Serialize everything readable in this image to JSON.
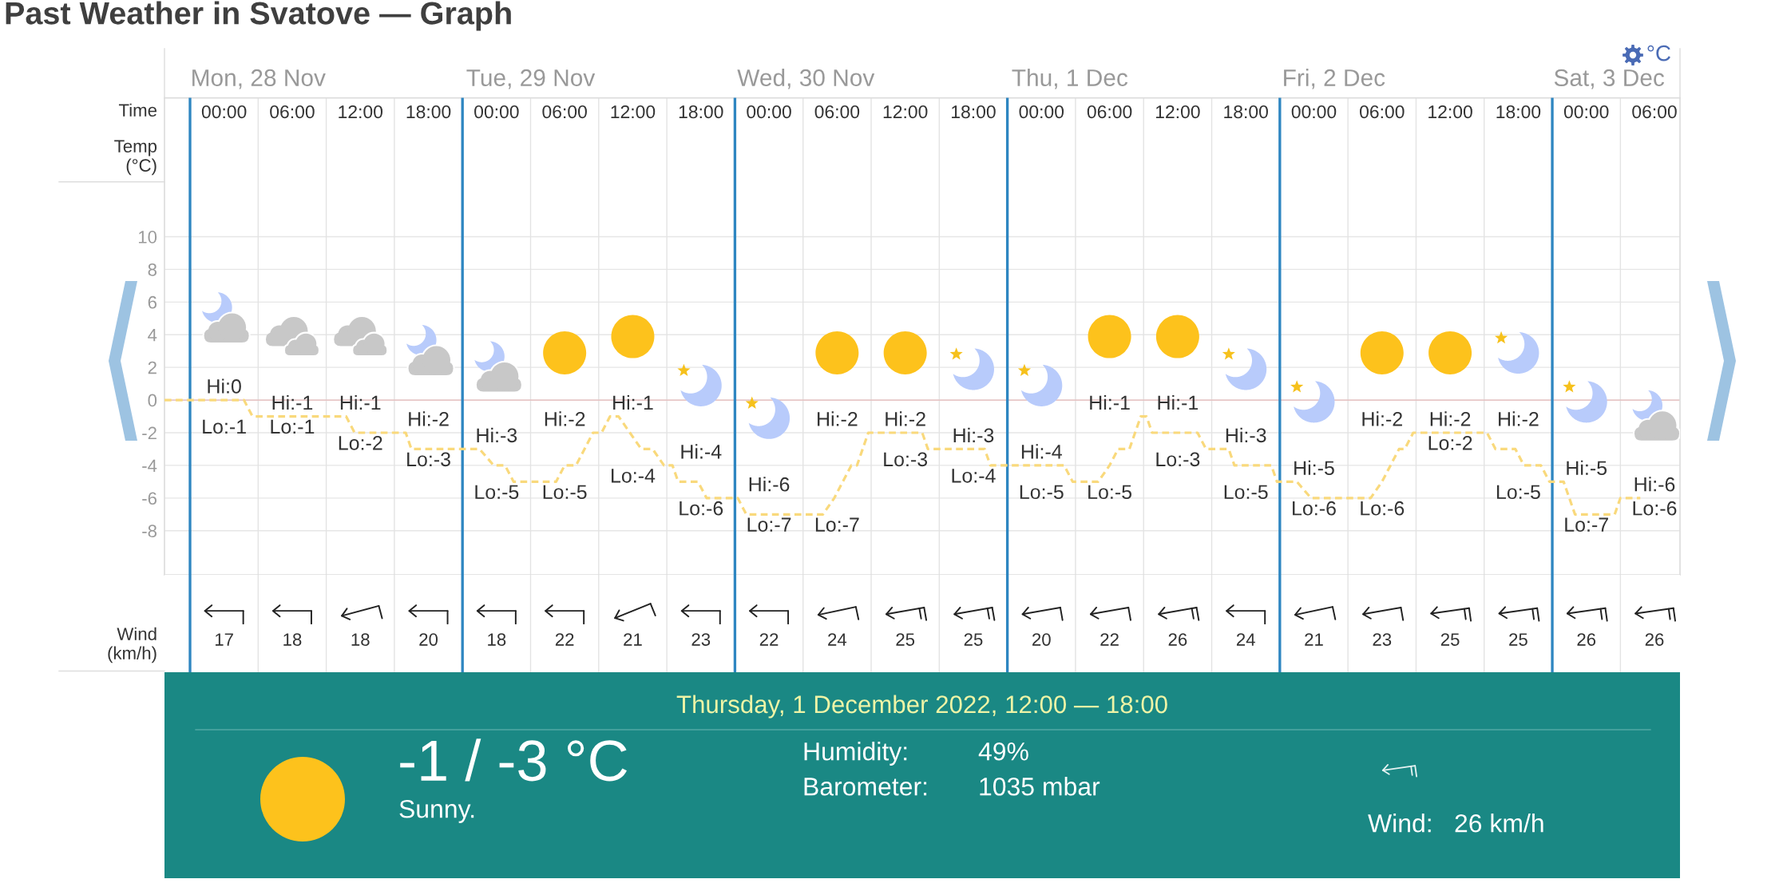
{
  "chart_data": [
    {
      "type": "line",
      "title": "Past Weather in Svatove — Graph",
      "xlabel": "Time",
      "ylabel": "Temp (°C)",
      "x": [
        "2022-11-27T21:45",
        "2022-11-28T04:45",
        "2022-11-28T05:30",
        "2022-11-28T13:45",
        "2022-11-28T14:30",
        "2022-11-28T19:00",
        "2022-11-28T19:30",
        "2022-11-29T01:30",
        "2022-11-29T02:45",
        "2022-11-29T03:45",
        "2022-11-29T04:30",
        "2022-11-29T08:15",
        "2022-11-29T09:00",
        "2022-11-29T10:00",
        "2022-11-29T10:45",
        "2022-11-29T11:30",
        "2022-11-29T12:15",
        "2022-11-29T13:00",
        "2022-11-29T13:45",
        "2022-11-29T14:45",
        "2022-11-29T15:45",
        "2022-11-29T16:45",
        "2022-11-29T17:45",
        "2022-11-29T18:30",
        "2022-11-29T19:00",
        "2022-11-29T20:45",
        "2022-11-29T21:30",
        "2022-11-30T00:15",
        "2022-11-30T01:00",
        "2022-11-30T07:45",
        "2022-11-30T08:45",
        "2022-11-30T10:15",
        "2022-11-30T10:45",
        "2022-11-30T11:45",
        "2022-11-30T16:30",
        "2022-11-30T17:00",
        "2022-11-30T22:00",
        "2022-11-30T22:30",
        "2022-12-01T05:00",
        "2022-12-01T05:45",
        "2022-12-01T08:00",
        "2022-12-01T09:00",
        "2022-12-01T09:45",
        "2022-12-01T10:45",
        "2022-12-01T11:45",
        "2022-12-01T12:15",
        "2022-12-01T12:45",
        "2022-12-01T16:45",
        "2022-12-01T17:30",
        "2022-12-01T19:30",
        "2022-12-01T20:00",
        "2022-12-01T23:15",
        "2022-12-01T23:45",
        "2022-12-02T01:30",
        "2022-12-02T02:45",
        "2022-12-02T08:00",
        "2022-12-02T09:00",
        "2022-12-02T09:45",
        "2022-12-02T10:30",
        "2022-12-02T11:00",
        "2022-12-02T11:45",
        "2022-12-02T18:15",
        "2022-12-02T19:00",
        "2022-12-02T20:45",
        "2022-12-02T21:30",
        "2022-12-02T23:00",
        "2022-12-02T23:45",
        "2022-12-03T01:00",
        "2022-12-03T01:30",
        "2022-12-03T02:00",
        "2022-12-03T05:30",
        "2022-12-03T06:00",
        "2022-12-03T07:45"
      ],
      "values": [
        0,
        0,
        -1,
        -1,
        -2,
        -2,
        -3,
        -3,
        -4,
        -4,
        -5,
        -5,
        -4,
        -4,
        -3,
        -2,
        -2,
        -1,
        -1,
        -2,
        -3,
        -3,
        -4,
        -4,
        -5,
        -5,
        -6,
        -6,
        -7,
        -7,
        -6,
        -4,
        -4,
        -2,
        -2,
        -3,
        -3,
        -4,
        -4,
        -5,
        -5,
        -4,
        -3,
        -3,
        -1,
        -1,
        -2,
        -2,
        -3,
        -3,
        -4,
        -4,
        -5,
        -5,
        -6,
        -6,
        -5,
        -4,
        -3,
        -3,
        -2,
        -2,
        -3,
        -3,
        -4,
        -4,
        -5,
        -5,
        -6,
        -7,
        -7,
        -6,
        -6
      ],
      "color": "#f9d97c",
      "line_style": "dashed",
      "xlim": [
        "2022-11-27T21:45",
        "2022-12-03T11:15"
      ],
      "xticks": [
        {
          "value": "2022-11-28T03:00",
          "label": "00:00"
        },
        {
          "value": "2022-11-28T09:00",
          "label": "06:00"
        },
        {
          "value": "2022-11-28T15:00",
          "label": "12:00"
        },
        {
          "value": "2022-11-28T21:00",
          "label": "18:00"
        },
        {
          "value": "2022-11-29T03:00",
          "label": "00:00"
        },
        {
          "value": "2022-11-29T09:00",
          "label": "06:00"
        },
        {
          "value": "2022-11-29T15:00",
          "label": "12:00"
        },
        {
          "value": "2022-11-29T21:00",
          "label": "18:00"
        },
        {
          "value": "2022-11-30T03:00",
          "label": "00:00"
        },
        {
          "value": "2022-11-30T09:00",
          "label": "06:00"
        },
        {
          "value": "2022-11-30T15:00",
          "label": "12:00"
        },
        {
          "value": "2022-11-30T21:00",
          "label": "18:00"
        },
        {
          "value": "2022-12-01T03:00",
          "label": "00:00"
        },
        {
          "value": "2022-12-01T09:00",
          "label": "06:00"
        },
        {
          "value": "2022-12-01T15:00",
          "label": "12:00"
        },
        {
          "value": "2022-12-01T21:00",
          "label": "18:00"
        },
        {
          "value": "2022-12-02T03:00",
          "label": "00:00"
        },
        {
          "value": "2022-12-02T09:00",
          "label": "06:00"
        },
        {
          "value": "2022-12-02T15:00",
          "label": "12:00"
        },
        {
          "value": "2022-12-02T21:00",
          "label": "18:00"
        },
        {
          "value": "2022-12-03T03:00",
          "label": "00:00"
        },
        {
          "value": "2022-12-03T09:00",
          "label": "06:00"
        }
      ],
      "x2lim": [
        "2022-11-27T21:45",
        "2022-12-03T11:15"
      ],
      "x2ticks": [
        {
          "value": "2022-11-28T06:00",
          "label": "Mon, 28 Nov"
        },
        {
          "value": "2022-11-29T06:00",
          "label": "Tue, 29 Nov"
        },
        {
          "value": "2022-11-30T06:15",
          "label": "Wed, 30 Nov"
        },
        {
          "value": "2022-12-01T05:30",
          "label": "Thu, 1 Dec"
        },
        {
          "value": "2022-12-02T04:45",
          "label": "Fri, 2 Dec"
        },
        {
          "value": "2022-12-03T05:00",
          "label": "Sat, 3 Dec"
        }
      ],
      "ylim": [
        -10.7,
        18.5
      ],
      "yticks": [
        -8,
        -6,
        -4,
        -2,
        0,
        2,
        4,
        6,
        8,
        10
      ],
      "grid": true,
      "ref_lines": [
        {
          "axis": "y",
          "value": 0,
          "color": "#e6b9b9"
        },
        {
          "axis": "x",
          "value": "2022-11-28",
          "color": "#2e86c1"
        },
        {
          "axis": "x",
          "value": "2022-11-29",
          "color": "#2e86c1"
        },
        {
          "axis": "x",
          "value": "2022-11-30",
          "color": "#2e86c1"
        },
        {
          "axis": "x",
          "value": "2022-12-01",
          "color": "#2e86c1"
        },
        {
          "axis": "x",
          "value": "2022-12-02",
          "color": "#2e86c1"
        },
        {
          "axis": "x",
          "value": "2022-12-03",
          "color": "#2e86c1"
        }
      ],
      "annotations": [
        "°C",
        {
          "text": "Hi:0",
          "x": "2022-11-28T03:00",
          "y": 0
        },
        {
          "text": "Lo:-1",
          "x": "2022-11-28T05:30",
          "y": -1
        },
        {
          "text": "Hi:-1",
          "x": "2022-11-28T09:00",
          "y": -1
        },
        {
          "text": "Lo:-1",
          "x": "2022-11-28T09:00",
          "y": -1
        },
        {
          "text": "Hi:-1",
          "x": "2022-11-28T13:45",
          "y": -1
        },
        {
          "text": "Lo:-2",
          "x": "2022-11-28T15:00",
          "y": -2
        },
        {
          "text": "Hi:-2",
          "x": "2022-11-28T19:00",
          "y": -2
        },
        {
          "text": "Lo:-3",
          "x": "2022-11-28T21:00",
          "y": -3
        },
        {
          "text": "Hi:-3",
          "x": "2022-11-29T01:30",
          "y": -3
        },
        {
          "text": "Lo:-5",
          "x": "2022-11-29T04:30",
          "y": -5
        },
        {
          "text": "Hi:-2",
          "x": "2022-11-29T11:30",
          "y": -2
        },
        {
          "text": "Lo:-5",
          "x": "2022-11-29T08:15",
          "y": -5
        },
        {
          "text": "Hi:-1",
          "x": "2022-11-29T13:45",
          "y": -1
        },
        {
          "text": "Lo:-4",
          "x": "2022-11-29T17:45",
          "y": -4
        },
        {
          "text": "Hi:-4",
          "x": "2022-11-29T18:30",
          "y": -4
        },
        {
          "text": "Lo:-6",
          "x": "2022-11-29T21:30",
          "y": -6
        },
        {
          "text": "Hi:-6",
          "x": "2022-11-30T00:15",
          "y": -6
        },
        {
          "text": "Lo:-7",
          "x": "2022-11-30T03:00",
          "y": -7
        },
        {
          "text": "Hi:-2",
          "x": "2022-11-30T11:45",
          "y": -2
        },
        {
          "text": "Lo:-7",
          "x": "2022-11-30T07:45",
          "y": -7
        },
        {
          "text": "Hi:-2",
          "x": "2022-11-30T15:00",
          "y": -2
        },
        {
          "text": "Lo:-3",
          "x": "2022-11-30T17:00",
          "y": -3
        },
        {
          "text": "Hi:-3",
          "x": "2022-11-30T21:00",
          "y": -3
        },
        {
          "text": "Lo:-4",
          "x": "2022-11-30T22:30",
          "y": -4
        },
        {
          "text": "Hi:-4",
          "x": "2022-12-01T03:00",
          "y": -4
        },
        {
          "text": "Lo:-5",
          "x": "2022-12-01T05:45",
          "y": -5
        },
        {
          "text": "Hi:-1",
          "x": "2022-12-01T11:45",
          "y": -1
        },
        {
          "text": "Lo:-5",
          "x": "2022-12-01T08:00",
          "y": -5
        },
        {
          "text": "Hi:-1",
          "x": "2022-12-01T12:15",
          "y": -1
        },
        {
          "text": "Lo:-3",
          "x": "2022-12-01T17:30",
          "y": -3
        },
        {
          "text": "Hi:-3",
          "x": "2022-12-01T19:30",
          "y": -3
        },
        {
          "text": "Lo:-5",
          "x": "2022-12-01T23:45",
          "y": -5
        },
        {
          "text": "Hi:-5",
          "x": "2022-12-02T01:30",
          "y": -5
        },
        {
          "text": "Lo:-6",
          "x": "2022-12-02T03:00",
          "y": -6
        },
        {
          "text": "Hi:-2",
          "x": "2022-12-02T11:45",
          "y": -2
        },
        {
          "text": "Lo:-6",
          "x": "2022-12-02T08:00",
          "y": -6
        },
        {
          "text": "Hi:-2",
          "x": "2022-12-02T15:00",
          "y": -2
        },
        {
          "text": "Lo:-2",
          "x": "2022-12-02T15:00",
          "y": -2
        },
        {
          "text": "Hi:-2",
          "x": "2022-12-02T18:15",
          "y": -2
        },
        {
          "text": "Lo:-5",
          "x": "2022-12-02T23:45",
          "y": -5
        },
        {
          "text": "Hi:-5",
          "x": "2022-12-03T01:00",
          "y": -5
        },
        {
          "text": "Lo:-7",
          "x": "2022-12-03T03:00",
          "y": -7
        },
        {
          "text": "Hi:-6",
          "x": "2022-12-03T07:45",
          "y": -6
        },
        {
          "text": "Lo:-6",
          "x": "2022-12-03T07:45",
          "y": -6
        }
      ]
    },
    {
      "type": "other",
      "ylabel": "Wind (km/h)",
      "categories": [
        null,
        null,
        null,
        null,
        null,
        null,
        null,
        null,
        null,
        null,
        null,
        null,
        null,
        null,
        null,
        null,
        null,
        null,
        null,
        null,
        null,
        null
      ],
      "values": [
        17,
        18,
        18,
        20,
        18,
        22,
        21,
        23,
        22,
        24,
        25,
        25,
        20,
        22,
        26,
        24,
        21,
        23,
        25,
        25,
        26,
        26
      ],
      "data_labels": true
    },
    {
      "type": "other",
      "title": "Thursday, 1 December 2022, 12:00 — 18:00",
      "annotations": [
        "-1 / -3 °C",
        "Sunny.",
        "Humidity:",
        "49%",
        "Barometer:",
        "1035 mbar",
        "Wind:",
        "26 km/h"
      ]
    }
  ]
}
